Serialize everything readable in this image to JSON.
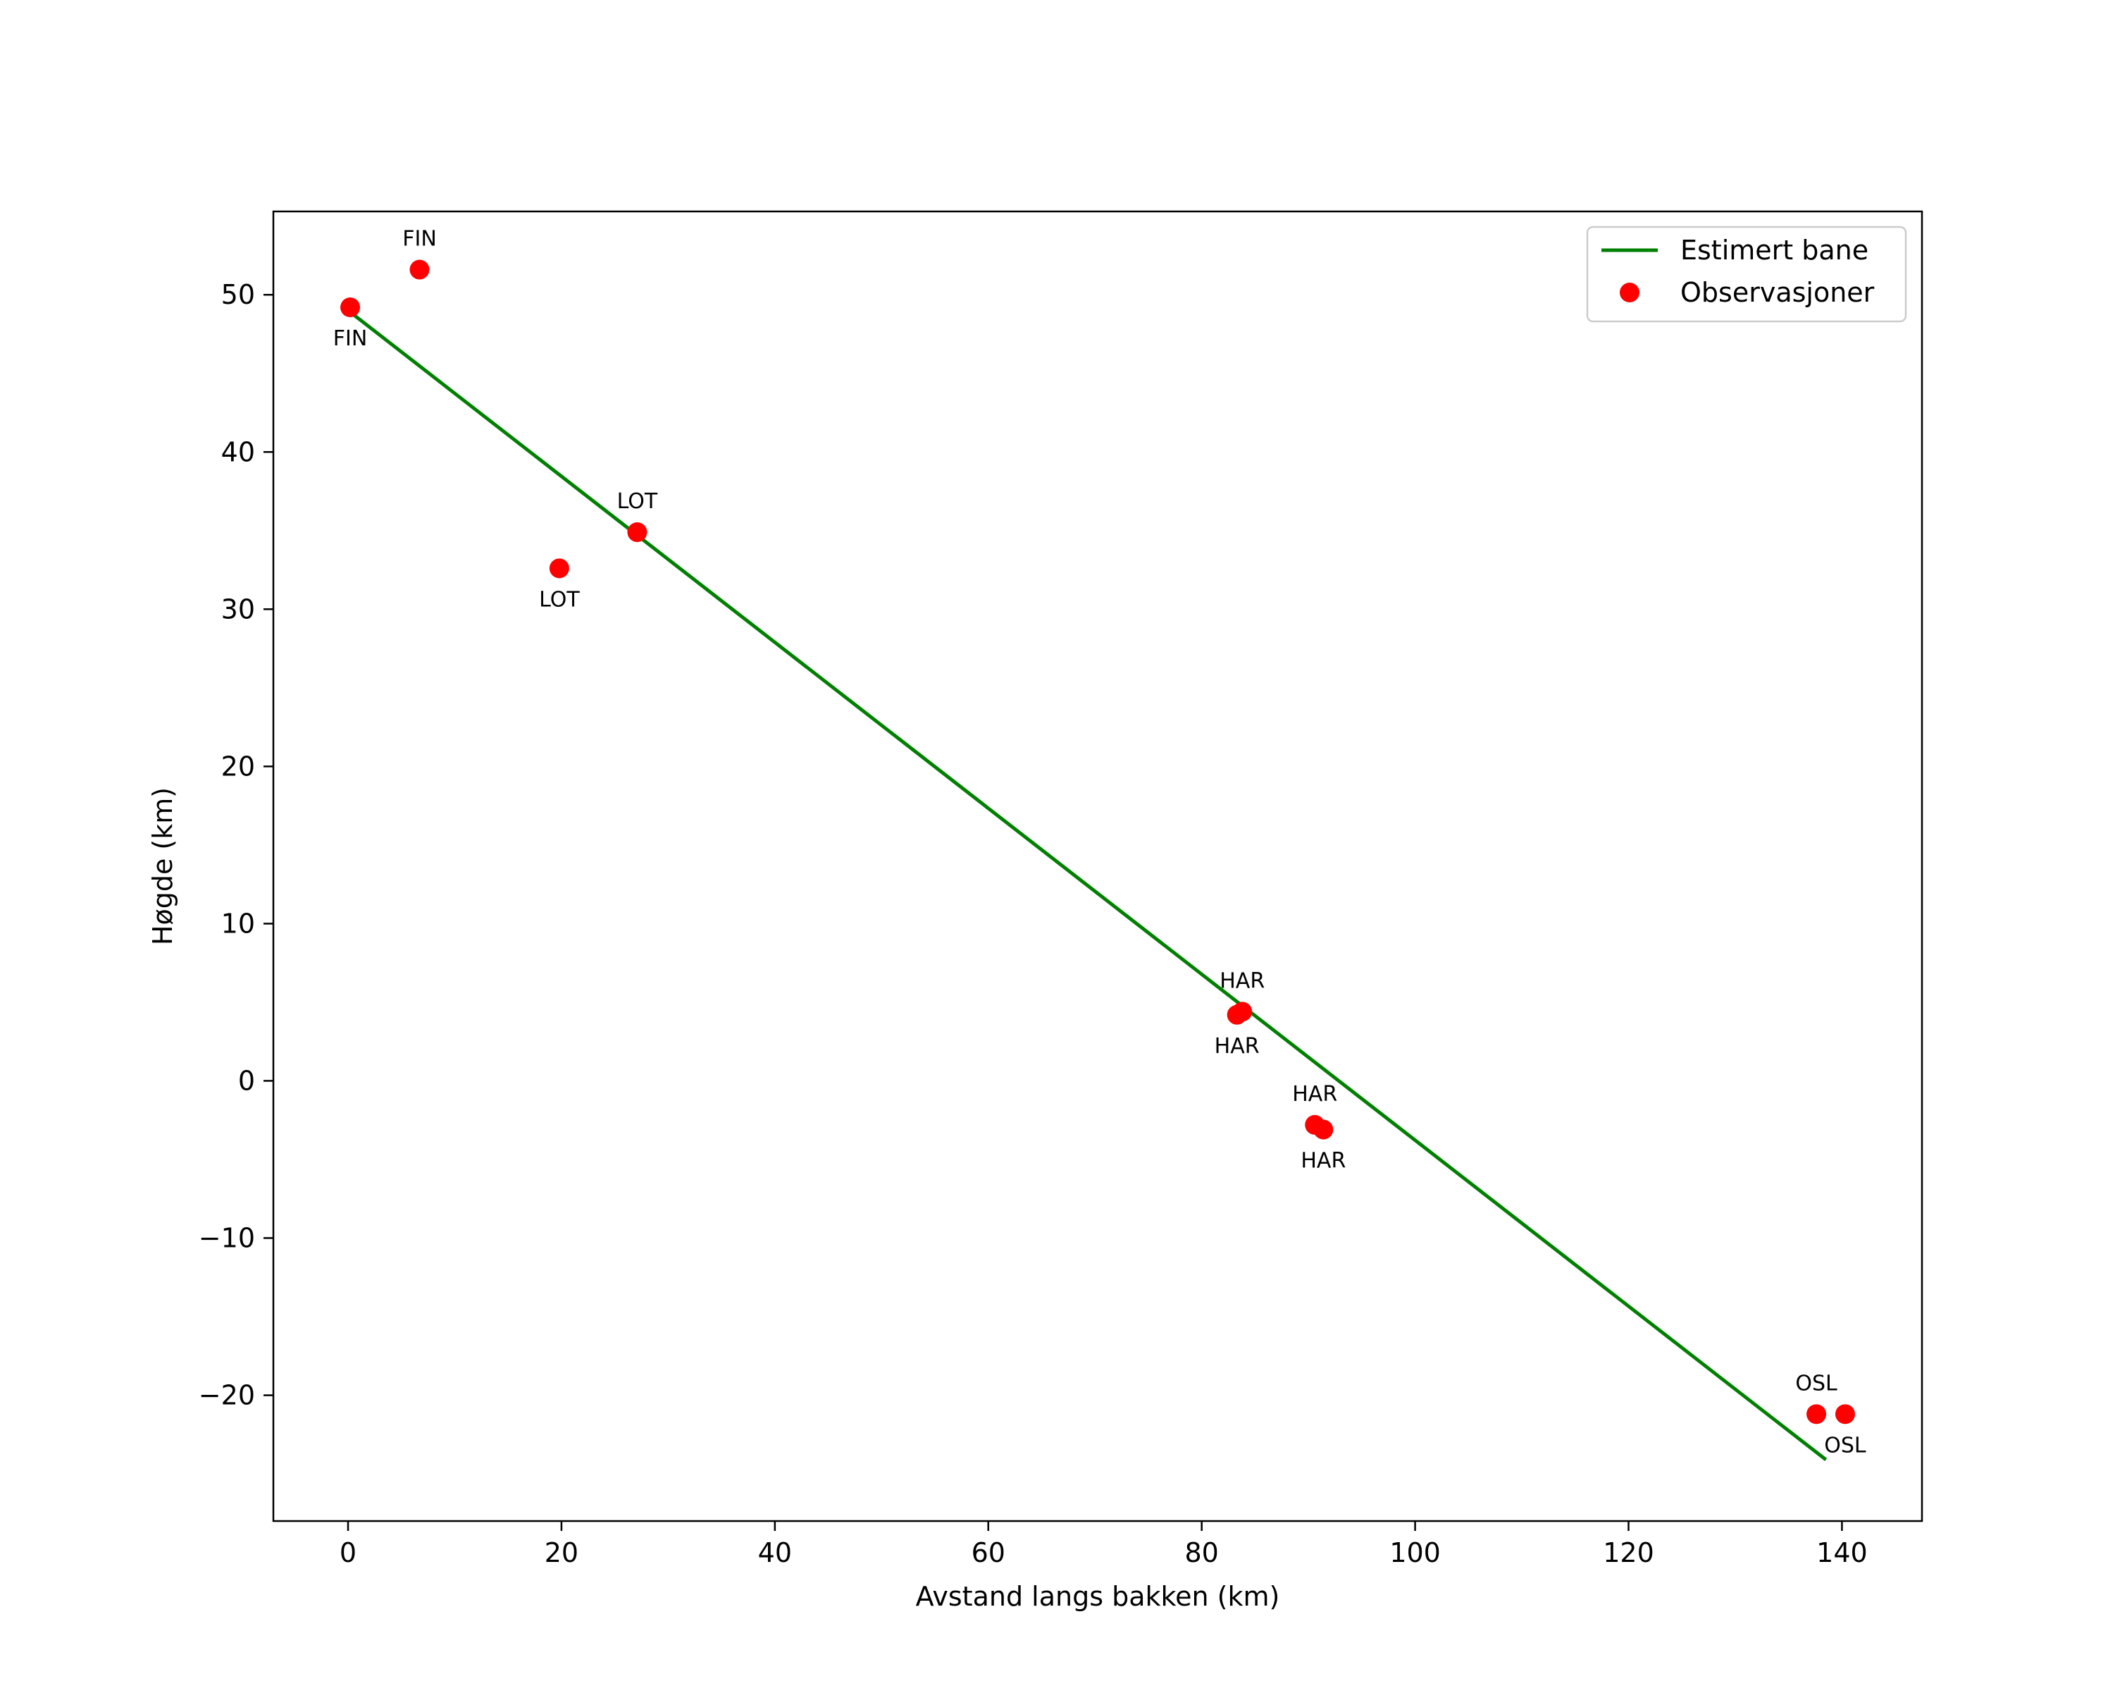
{
  "chart_data": {
    "type": "scatter",
    "title": "",
    "xlabel": "Avstand langs bakken (km)",
    "ylabel": "Høgde (km)",
    "xlim": [
      -7,
      147.5
    ],
    "ylim": [
      -28,
      55.3
    ],
    "xticks": [
      0,
      20,
      40,
      60,
      80,
      100,
      120,
      140
    ],
    "yticks": [
      50,
      40,
      30,
      20,
      10,
      0,
      -10,
      -20
    ],
    "ytick_labels": [
      "50",
      "40",
      "30",
      "20",
      "10",
      "0",
      "−10",
      "−20"
    ],
    "grid": false,
    "legend_position": "top-right",
    "colors": {
      "line": "#008000",
      "points": "#ff0000",
      "frame": "#000000"
    },
    "series": [
      {
        "name": "Estimert bane",
        "kind": "line",
        "x": [
          0.2,
          138.5
        ],
        "y": [
          48.9,
          -24.1
        ]
      },
      {
        "name": "Observasjoner",
        "kind": "scatter",
        "points": [
          {
            "x": 0.2,
            "y": 49.2,
            "label": "FIN",
            "label_side": "below"
          },
          {
            "x": 6.7,
            "y": 51.6,
            "label": "FIN",
            "label_side": "above"
          },
          {
            "x": 19.8,
            "y": 32.6,
            "label": "LOT",
            "label_side": "below"
          },
          {
            "x": 27.1,
            "y": 34.9,
            "label": "LOT",
            "label_side": "above"
          },
          {
            "x": 83.3,
            "y": 4.2,
            "label": "HAR",
            "label_side": "below"
          },
          {
            "x": 83.8,
            "y": 4.4,
            "label": "HAR",
            "label_side": "above"
          },
          {
            "x": 90.6,
            "y": -2.8,
            "label": "HAR",
            "label_side": "above"
          },
          {
            "x": 91.4,
            "y": -3.1,
            "label": "HAR",
            "label_side": "below"
          },
          {
            "x": 137.6,
            "y": -21.2,
            "label": "OSL",
            "label_side": "above"
          },
          {
            "x": 140.3,
            "y": -21.2,
            "label": "OSL",
            "label_side": "below"
          }
        ]
      }
    ]
  }
}
